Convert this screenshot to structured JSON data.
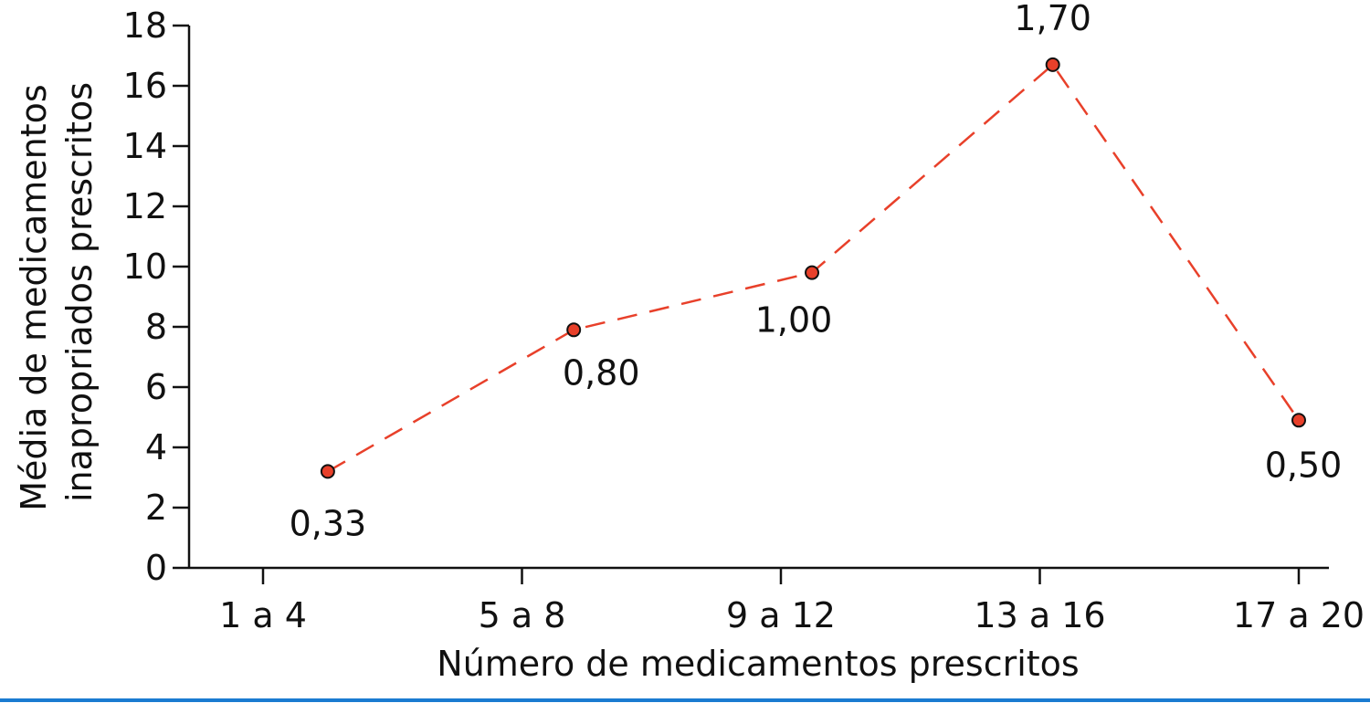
{
  "chart_data": {
    "type": "line",
    "xlabel": "Número de medicamentos prescritos",
    "ylabel_lines": [
      "Média de medicamentos",
      "inapropriados prescritos"
    ],
    "categories": [
      "1 a 4",
      "5 a 8",
      "9 a 12",
      "13 a 16",
      "17 a 20"
    ],
    "y_ticks": [
      "0",
      "2",
      "4",
      "6",
      "8",
      "10",
      "12",
      "14",
      "16",
      "18"
    ],
    "ylim": [
      0,
      18
    ],
    "grid": false,
    "legend": "none",
    "series": [
      {
        "x": [
          1.25,
          2.2,
          3.12,
          4.05,
          5.0
        ],
        "values": [
          3.2,
          7.9,
          9.8,
          16.7,
          4.9
        ],
        "labels": [
          "0,33",
          "0,80",
          "1,00",
          "1,70",
          "0,50"
        ],
        "color": "#e8402a",
        "line_style": "dashed"
      }
    ],
    "footer_rule_color": "#1a7bd1"
  }
}
